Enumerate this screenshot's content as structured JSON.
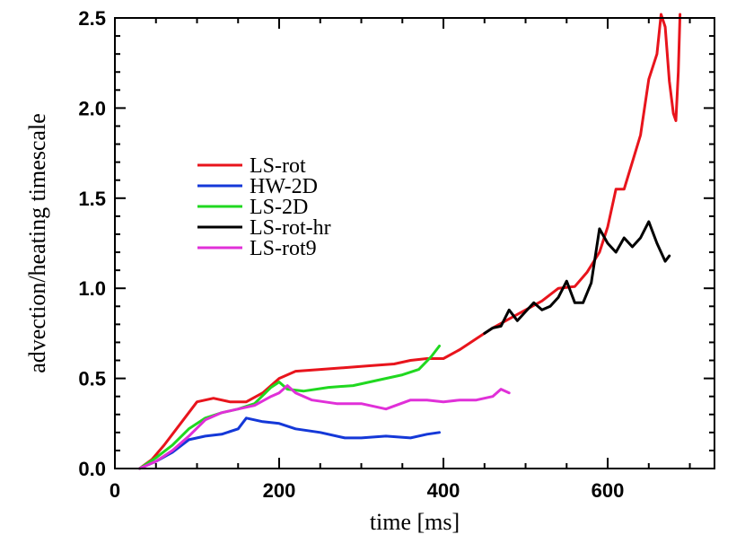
{
  "chart_data": {
    "type": "line",
    "title": "",
    "xlabel": "time [ms]",
    "ylabel": "advection/heating timescale",
    "xlim": [
      0,
      730
    ],
    "ylim": [
      0,
      2.5
    ],
    "xticks": [
      0,
      200,
      400,
      600
    ],
    "xtick_labels": [
      "0",
      "200",
      "400",
      "600"
    ],
    "yticks": [
      0.0,
      0.5,
      1.0,
      1.5,
      2.0,
      2.5
    ],
    "ytick_labels": [
      "0.0",
      "0.5",
      "1.0",
      "1.5",
      "2.0",
      "2.5"
    ],
    "grid": false,
    "legend_position": "middle-left",
    "series": [
      {
        "name": "LS-rot",
        "color": "#e8141c",
        "points": [
          [
            30,
            0.0
          ],
          [
            45,
            0.05
          ],
          [
            60,
            0.13
          ],
          [
            80,
            0.25
          ],
          [
            100,
            0.37
          ],
          [
            120,
            0.39
          ],
          [
            140,
            0.37
          ],
          [
            160,
            0.37
          ],
          [
            180,
            0.42
          ],
          [
            200,
            0.5
          ],
          [
            220,
            0.54
          ],
          [
            250,
            0.55
          ],
          [
            280,
            0.56
          ],
          [
            310,
            0.57
          ],
          [
            340,
            0.58
          ],
          [
            360,
            0.6
          ],
          [
            380,
            0.61
          ],
          [
            400,
            0.61
          ],
          [
            420,
            0.66
          ],
          [
            440,
            0.72
          ],
          [
            460,
            0.78
          ],
          [
            480,
            0.83
          ],
          [
            500,
            0.88
          ],
          [
            520,
            0.93
          ],
          [
            540,
            1.0
          ],
          [
            560,
            1.01
          ],
          [
            575,
            1.09
          ],
          [
            590,
            1.2
          ],
          [
            600,
            1.34
          ],
          [
            610,
            1.55
          ],
          [
            620,
            1.55
          ],
          [
            630,
            1.7
          ],
          [
            640,
            1.85
          ],
          [
            650,
            2.16
          ],
          [
            660,
            2.3
          ],
          [
            665,
            2.52
          ],
          [
            670,
            2.45
          ],
          [
            675,
            2.15
          ],
          [
            680,
            1.97
          ],
          [
            683,
            1.93
          ],
          [
            686,
            2.2
          ],
          [
            688,
            2.52
          ]
        ]
      },
      {
        "name": "HW-2D",
        "color": "#1438d8",
        "points": [
          [
            30,
            0.0
          ],
          [
            50,
            0.04
          ],
          [
            70,
            0.09
          ],
          [
            90,
            0.16
          ],
          [
            110,
            0.18
          ],
          [
            130,
            0.19
          ],
          [
            150,
            0.22
          ],
          [
            160,
            0.28
          ],
          [
            180,
            0.26
          ],
          [
            200,
            0.25
          ],
          [
            220,
            0.22
          ],
          [
            250,
            0.2
          ],
          [
            280,
            0.17
          ],
          [
            300,
            0.17
          ],
          [
            330,
            0.18
          ],
          [
            360,
            0.17
          ],
          [
            380,
            0.19
          ],
          [
            395,
            0.2
          ]
        ]
      },
      {
        "name": "LS-2D",
        "color": "#20d820",
        "points": [
          [
            30,
            0.0
          ],
          [
            50,
            0.06
          ],
          [
            70,
            0.13
          ],
          [
            90,
            0.22
          ],
          [
            110,
            0.28
          ],
          [
            130,
            0.31
          ],
          [
            150,
            0.33
          ],
          [
            170,
            0.36
          ],
          [
            190,
            0.45
          ],
          [
            200,
            0.48
          ],
          [
            210,
            0.44
          ],
          [
            230,
            0.43
          ],
          [
            260,
            0.45
          ],
          [
            290,
            0.46
          ],
          [
            320,
            0.49
          ],
          [
            350,
            0.52
          ],
          [
            370,
            0.55
          ],
          [
            385,
            0.62
          ],
          [
            395,
            0.68
          ]
        ]
      },
      {
        "name": "LS-rot-hr",
        "color": "#000000",
        "points": [
          [
            450,
            0.75
          ],
          [
            460,
            0.78
          ],
          [
            470,
            0.79
          ],
          [
            480,
            0.88
          ],
          [
            490,
            0.82
          ],
          [
            500,
            0.87
          ],
          [
            510,
            0.92
          ],
          [
            520,
            0.88
          ],
          [
            530,
            0.9
          ],
          [
            540,
            0.95
          ],
          [
            550,
            1.04
          ],
          [
            560,
            0.92
          ],
          [
            570,
            0.92
          ],
          [
            580,
            1.03
          ],
          [
            590,
            1.33
          ],
          [
            600,
            1.25
          ],
          [
            610,
            1.2
          ],
          [
            620,
            1.28
          ],
          [
            630,
            1.23
          ],
          [
            640,
            1.28
          ],
          [
            650,
            1.37
          ],
          [
            660,
            1.25
          ],
          [
            670,
            1.15
          ],
          [
            675,
            1.18
          ]
        ]
      },
      {
        "name": "LS-rot9",
        "color": "#e030d8",
        "points": [
          [
            30,
            0.0
          ],
          [
            50,
            0.04
          ],
          [
            70,
            0.1
          ],
          [
            90,
            0.18
          ],
          [
            110,
            0.27
          ],
          [
            130,
            0.31
          ],
          [
            150,
            0.33
          ],
          [
            170,
            0.35
          ],
          [
            190,
            0.4
          ],
          [
            200,
            0.42
          ],
          [
            210,
            0.46
          ],
          [
            220,
            0.42
          ],
          [
            240,
            0.38
          ],
          [
            270,
            0.36
          ],
          [
            300,
            0.36
          ],
          [
            330,
            0.33
          ],
          [
            360,
            0.38
          ],
          [
            380,
            0.38
          ],
          [
            400,
            0.37
          ],
          [
            420,
            0.38
          ],
          [
            440,
            0.38
          ],
          [
            460,
            0.4
          ],
          [
            470,
            0.44
          ],
          [
            480,
            0.42
          ]
        ]
      }
    ]
  }
}
